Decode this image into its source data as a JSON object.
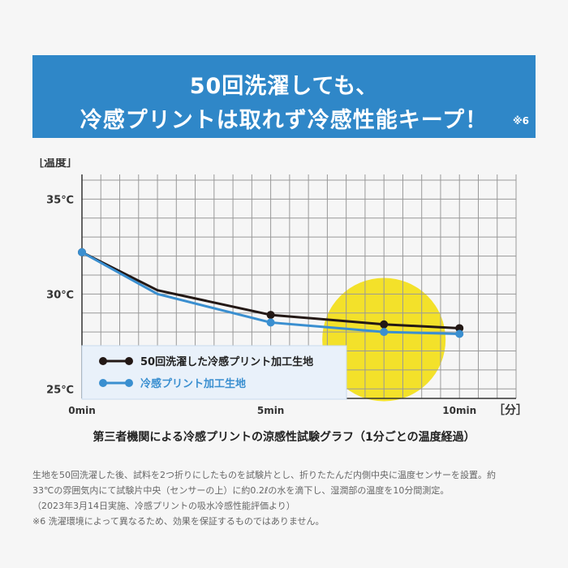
{
  "header": {
    "line1": "50回洗濯しても、",
    "line2": "冷感プリントは取れず冷感性能キープ！",
    "footnote_mark": "※6"
  },
  "chart_data": {
    "type": "line",
    "ylabel": "［温度］",
    "xlabel": "［分］",
    "x_ticks": [
      {
        "x": 0,
        "label": "0min"
      },
      {
        "x": 5,
        "label": "5min"
      },
      {
        "x": 10,
        "label": "10min"
      }
    ],
    "y_ticks": [
      {
        "y": 35,
        "label": "35℃"
      },
      {
        "y": 30,
        "label": "30℃"
      },
      {
        "y": 25,
        "label": "25℃"
      }
    ],
    "xlim": [
      0,
      11.5
    ],
    "ylim": [
      24.5,
      36.3
    ],
    "grid": true,
    "legend_position": "bottom-left",
    "series": [
      {
        "name": "50回洗濯した冷感プリント加工生地",
        "color": "#231815",
        "x": [
          0,
          2,
          5,
          8,
          10
        ],
        "y": [
          32.2,
          30.2,
          28.9,
          28.4,
          28.2
        ]
      },
      {
        "name": "冷感プリント加工生地",
        "color": "#3a8fd0",
        "x": [
          0,
          2,
          5,
          8,
          10
        ],
        "y": [
          32.2,
          30.0,
          28.5,
          28.0,
          27.9
        ]
      }
    ],
    "marker_x": [
      0,
      5,
      8,
      10
    ]
  },
  "caption": "第三者機関による冷感プリントの涼感性試験グラフ（1分ごとの温度経過）",
  "notes": [
    "生地を50回洗濯した後、試料を2つ折りにしたものを試験片とし、折りたたんだ内側中央に温度センサーを設置。約",
    "33℃の雰囲気内にて試験片中央（センサーの上）に約0.2ℓの水を滴下し、湿潤部の温度を10分間測定。",
    "（2023年3月14日実施、冷感プリントの吸水冷感性能評価より）",
    "※6 洗濯環境によって異なるため、効果を保証するものではありません。"
  ],
  "colors": {
    "banner": "#2f87c8",
    "highlight": "#f3e12a",
    "grid": "#999999"
  }
}
